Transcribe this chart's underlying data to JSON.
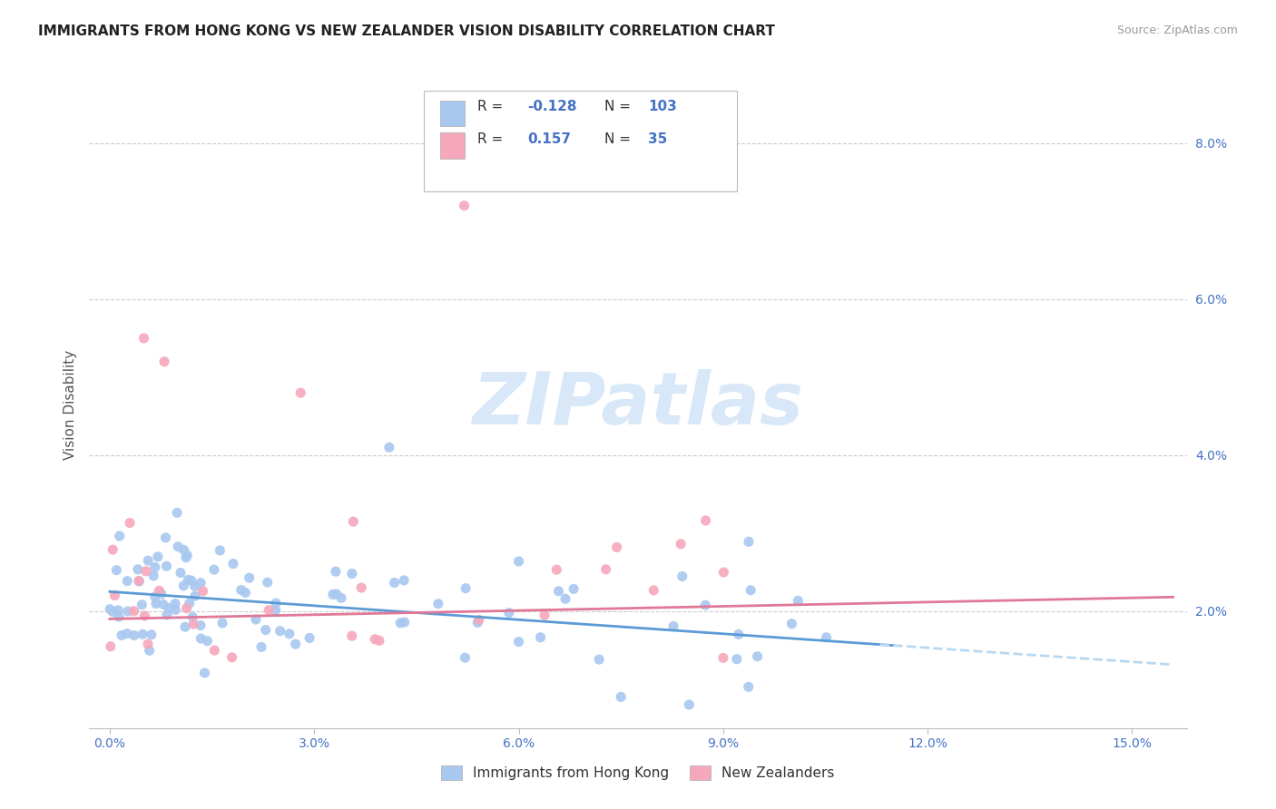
{
  "title": "IMMIGRANTS FROM HONG KONG VS NEW ZEALANDER VISION DISABILITY CORRELATION CHART",
  "source": "Source: ZipAtlas.com",
  "xlabel_ticks": [
    "0.0%",
    "3.0%",
    "6.0%",
    "9.0%",
    "12.0%",
    "15.0%"
  ],
  "xlabel_vals": [
    0.0,
    0.03,
    0.06,
    0.09,
    0.12,
    0.15
  ],
  "ylabel_ticks": [
    "2.0%",
    "4.0%",
    "6.0%",
    "8.0%"
  ],
  "ylabel_vals": [
    0.02,
    0.04,
    0.06,
    0.08
  ],
  "xlim": [
    -0.003,
    0.158
  ],
  "ylim": [
    0.005,
    0.088
  ],
  "ylabel": "Vision Disability",
  "legend_label1": "Immigrants from Hong Kong",
  "legend_label2": "New Zealanders",
  "R1": -0.128,
  "N1": 103,
  "R2": 0.157,
  "N2": 35,
  "color_blue": "#A8C8F0",
  "color_pink": "#F5A8BC",
  "color_blue_line": "#5B9BD5",
  "color_pink_line": "#E07898",
  "color_dashed": "#B8D8F0",
  "color_axis_blue": "#4472C4",
  "watermark_color": "#D8E8F8",
  "background_color": "#FFFFFF",
  "grid_color": "#CCCCCC",
  "title_fontsize": 11,
  "watermark_text": "ZIPatlas"
}
